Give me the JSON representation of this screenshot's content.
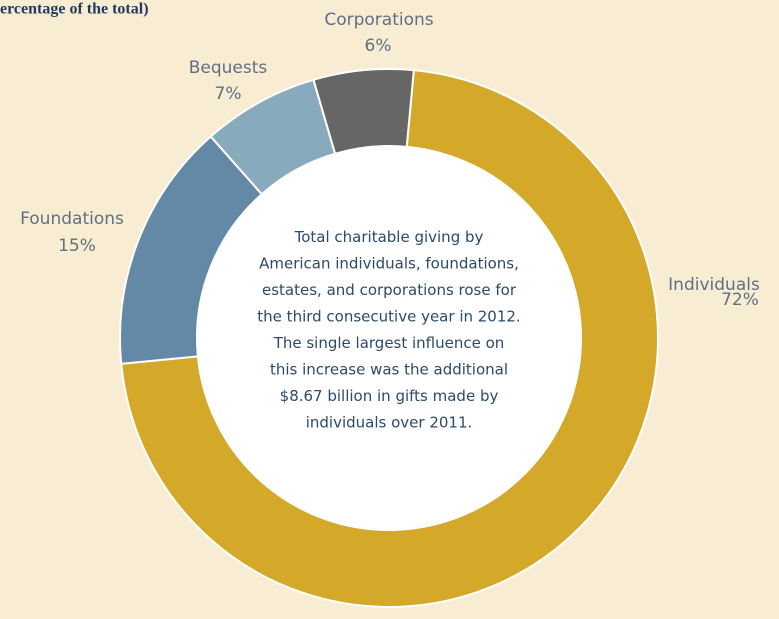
{
  "chart_data": {
    "type": "donut",
    "title": "ercentage of the total)",
    "categories": [
      "Individuals",
      "Foundations",
      "Bequests",
      "Corporations"
    ],
    "values": [
      72,
      15,
      7,
      6
    ],
    "value_labels": [
      "72%",
      "15%",
      "7%",
      "6%"
    ],
    "colors": [
      "#d4a829",
      "#6389a6",
      "#88aabd",
      "#666666"
    ],
    "annotation": [
      "Total charitable giving by",
      "American individuals, foundations,",
      "estates, and corporations rose for",
      "the third consecutive year in 2012.",
      "The single largest influence on",
      "this increase was the additional",
      "$8.67 billion in gifts made by",
      "individuals over 2011."
    ]
  }
}
